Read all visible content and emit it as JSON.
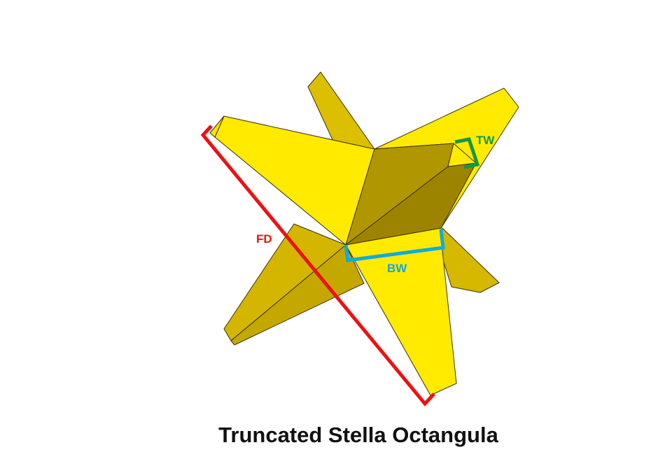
{
  "title": "Truncated Stella Octangula",
  "colors": {
    "bright_face": "#ffea00",
    "mid_face": "#dcbf00",
    "dark_face": "#ae9400",
    "darker_face": "#8f7a00",
    "fd_color": "#ee1111",
    "bw_color": "#11aadd",
    "tw_color": "#119944"
  },
  "labels": {
    "fd": "FD",
    "bw": "BW",
    "tw": "TW"
  }
}
